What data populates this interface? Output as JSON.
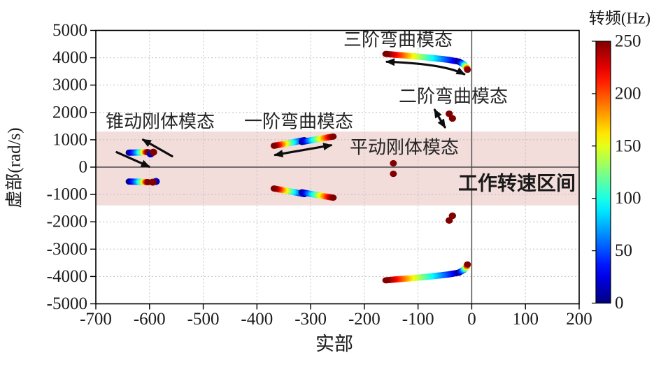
{
  "figure": {
    "background": "#ffffff",
    "description": "转子系统特征值轨迹图(复平面), 颜色表示转频"
  },
  "colors": {
    "band_fill": "#f2dddb",
    "band_label": "#c01414",
    "grid": "#c0c0c0",
    "zero_line": "#4a4a4a",
    "border": "#000000",
    "arrow": "#0d0d0d",
    "max_frequency_point": "#800000",
    "min_frequency_point": "#000080"
  },
  "mode_labels": [
    {
      "label": "锥动刚体模态"
    },
    {
      "label": "一阶弯曲模态"
    },
    {
      "label": "三阶弯曲模态"
    },
    {
      "label": "二阶弯曲模态"
    },
    {
      "label": "平动刚体模态"
    }
  ],
  "chart_data": {
    "type": "scatter",
    "xlabel": "实部",
    "ylabel": "虚部(rad/s)",
    "xlim": [
      -700,
      200
    ],
    "ylim": [
      -5000,
      5000
    ],
    "x_ticks": [
      -700,
      -600,
      -500,
      -400,
      -300,
      -200,
      -100,
      0,
      100,
      200
    ],
    "y_ticks": [
      5000,
      4000,
      3000,
      2000,
      1000,
      0,
      -1000,
      -2000,
      -3000,
      -4000,
      -5000
    ],
    "grid": true,
    "color_axis": {
      "label": "转频(Hz)",
      "min": 0,
      "max": 250,
      "ticks": [
        250,
        200,
        150,
        100,
        50,
        0
      ],
      "colormap": "jet"
    },
    "working_speed_band": {
      "label": "工作转速区间",
      "y_min": -1400,
      "y_max": 1300
    },
    "series": [
      {
        "name": "锥动刚体模态(正虚部)",
        "kind": "trail",
        "r": 5,
        "points": [
          [
            -638,
            528,
            0
          ],
          [
            -622,
            536,
            70
          ],
          [
            -610,
            544,
            150
          ],
          [
            -603,
            549,
            250
          ]
        ]
      },
      {
        "name": "锥动刚体模态(正虚部)孤立点",
        "kind": "dots",
        "r": 5.5,
        "points": [
          [
            -598,
            483,
            15
          ],
          [
            -593,
            545,
            250
          ]
        ]
      },
      {
        "name": "锥动刚体模态(负虚部)",
        "kind": "trail",
        "r": 5,
        "points": [
          [
            -638,
            -528,
            0
          ],
          [
            -622,
            -536,
            70
          ],
          [
            -610,
            -544,
            150
          ],
          [
            -603,
            -549,
            250
          ]
        ]
      },
      {
        "name": "锥动刚体模态(负虚部)孤立点",
        "kind": "dots",
        "r": 5.5,
        "points": [
          [
            -588,
            -525,
            15
          ],
          [
            -594,
            -550,
            250
          ]
        ]
      },
      {
        "name": "一阶弯曲模态(正,后向)",
        "kind": "trail",
        "r": 5,
        "points": [
          [
            -312,
            985,
            0
          ],
          [
            -341,
            878,
            120
          ],
          [
            -368,
            782,
            250
          ]
        ]
      },
      {
        "name": "一阶弯曲模态(正,前向)",
        "kind": "trail",
        "r": 5,
        "points": [
          [
            -316,
            922,
            0
          ],
          [
            -288,
            1022,
            120
          ],
          [
            -258,
            1118,
            250
          ]
        ]
      },
      {
        "name": "一阶弯曲模态(负,后向)",
        "kind": "trail",
        "r": 5,
        "points": [
          [
            -312,
            -985,
            0
          ],
          [
            -341,
            -878,
            120
          ],
          [
            -368,
            -782,
            250
          ]
        ]
      },
      {
        "name": "一阶弯曲模态(负,前向)",
        "kind": "trail",
        "r": 5,
        "points": [
          [
            -316,
            -922,
            0
          ],
          [
            -288,
            -1022,
            120
          ],
          [
            -258,
            -1118,
            250
          ]
        ]
      },
      {
        "name": "平动刚体模态",
        "kind": "dots",
        "r": 5,
        "points": [
          [
            -146,
            140,
            250
          ],
          [
            -146,
            -245,
            250
          ]
        ]
      },
      {
        "name": "二阶弯曲模态(正)",
        "kind": "dots",
        "r": 5.2,
        "points": [
          [
            -42,
            1950,
            250
          ],
          [
            -36,
            1780,
            250
          ]
        ]
      },
      {
        "name": "二阶弯曲模态(负)",
        "kind": "dots",
        "r": 5.2,
        "points": [
          [
            -42,
            -1950,
            250
          ],
          [
            -36,
            -1780,
            250
          ]
        ]
      },
      {
        "name": "三阶弯曲模态(正,后向)",
        "kind": "trail",
        "r": 5,
        "points": [
          [
            -24,
            3860,
            0
          ],
          [
            -45,
            3930,
            40
          ],
          [
            -75,
            3995,
            90
          ],
          [
            -110,
            4060,
            150
          ],
          [
            -140,
            4105,
            210
          ],
          [
            -160,
            4140,
            250
          ]
        ]
      },
      {
        "name": "三阶弯曲模态(正,前向)",
        "kind": "trail",
        "r": 5,
        "points": [
          [
            -24,
            3860,
            0
          ],
          [
            -15,
            3760,
            70
          ],
          [
            -10,
            3660,
            150
          ],
          [
            -8,
            3560,
            250
          ]
        ]
      },
      {
        "name": "三阶弯曲模态(负,后向)",
        "kind": "trail",
        "r": 5,
        "points": [
          [
            -24,
            -3860,
            0
          ],
          [
            -45,
            -3930,
            40
          ],
          [
            -75,
            -3995,
            90
          ],
          [
            -110,
            -4060,
            150
          ],
          [
            -140,
            -4105,
            210
          ],
          [
            -160,
            -4140,
            250
          ]
        ]
      },
      {
        "name": "三阶弯曲模态(负,前向)",
        "kind": "trail",
        "r": 5,
        "points": [
          [
            -24,
            -3860,
            0
          ],
          [
            -15,
            -3760,
            70
          ],
          [
            -10,
            -3660,
            150
          ],
          [
            -8,
            -3560,
            250
          ]
        ]
      }
    ],
    "arrows": [
      {
        "name": "锥动模态前向箭头",
        "heads": "end",
        "path": [
          [
            -558,
            400
          ],
          [
            -612,
            1000
          ]
        ]
      },
      {
        "name": "锥动模态后向箭头",
        "heads": "end",
        "path": [
          [
            -661,
            545
          ],
          [
            -601,
            20
          ]
        ]
      },
      {
        "name": "一阶弯曲双向箭头",
        "heads": "both",
        "path": [
          [
            -366,
            445
          ],
          [
            -262,
            800
          ]
        ]
      },
      {
        "name": "三阶弯曲双向箭头",
        "heads": "both",
        "path": [
          [
            -158,
            3855
          ],
          [
            -52,
            3780
          ],
          [
            -14,
            3400
          ]
        ]
      },
      {
        "name": "二阶弯曲双向箭头",
        "heads": "both",
        "path": [
          [
            -69,
            2095
          ],
          [
            -58,
            1710
          ],
          [
            -50,
            1460
          ]
        ]
      }
    ]
  }
}
